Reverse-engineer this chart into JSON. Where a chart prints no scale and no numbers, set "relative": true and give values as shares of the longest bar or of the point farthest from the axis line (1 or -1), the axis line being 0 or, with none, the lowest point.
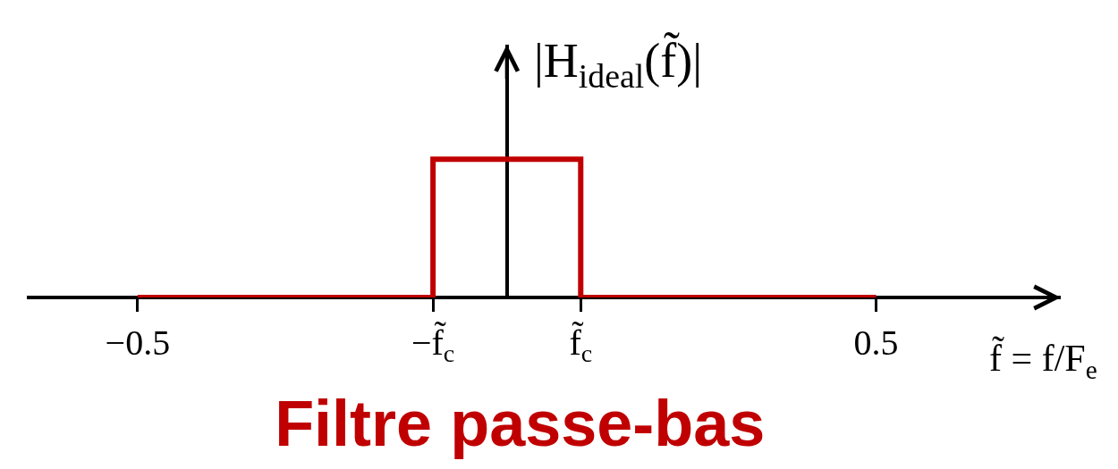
{
  "chart_data": {
    "type": "step",
    "title": "Filtre passe-bas",
    "xlabel": "f̃ = f/F$_{e}$",
    "ylabel": "|H$_{ideal}$(f̃)|",
    "x": [
      -0.5,
      -0.1,
      0.1,
      0.5
    ],
    "values": [
      0,
      1,
      0,
      0
    ],
    "relative": true,
    "color": "#c00000",
    "xlim": [
      -0.65,
      0.75
    ],
    "xticks": [
      -0.5,
      {
        "value": -0.1,
        "label": "−f̃$_{c}$"
      },
      {
        "value": 0.1,
        "label": "f̃$_{c}$"
      },
      0.5
    ]
  }
}
